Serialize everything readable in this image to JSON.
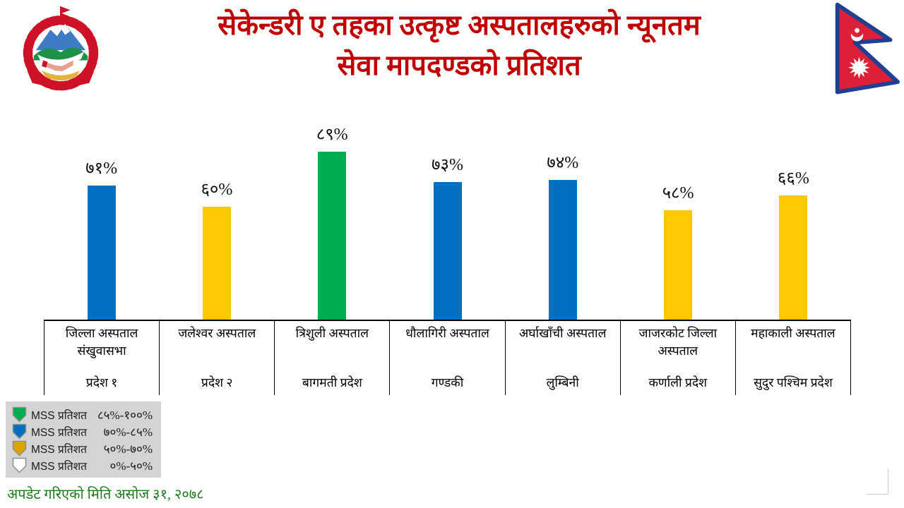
{
  "slide": {
    "title_line1": "सेकेन्डरी ए तहका उत्कृष्ट अस्पतालहरुको न्यूनतम",
    "title_line2": "सेवा मापदण्डको प्रतिशत",
    "footer": "अपडेट गरिएको मिति असोज ३१, २०७८"
  },
  "icons": {
    "logo": "nepal-government-emblem",
    "flag": "nepal-flag"
  },
  "colors": {
    "title_red": "#C00000",
    "bar_blue": "#0070C0",
    "bar_yellow": "#FFC800",
    "bar_green": "#00AC50",
    "legend_bg": "#D4D4D4",
    "footer_green": "#1F7A1F"
  },
  "chart_data": {
    "type": "bar",
    "title": "सेकेन्डरी ए तहका उत्कृष्ट अस्पतालहरुको न्यूनतम सेवा मापदण्डको प्रतिशत",
    "categories": [
      "जिल्ला अस्पताल संखुवासभा",
      "जलेश्वर अस्पताल",
      "त्रिशुली अस्पताल",
      "धौलागिरी अस्पताल",
      "अर्घाखाँची अस्पताल",
      "जाजरकोट जिल्ला अस्पताल",
      "महाकाली अस्पताल"
    ],
    "provinces": [
      "प्रदेश १",
      "प्रदेश २",
      "बागमती प्रदेश",
      "गण्डकी",
      "लुम्बिनी",
      "कर्णाली प्रदेश",
      "सुदुर पश्चिम प्रदेश"
    ],
    "values": [
      71,
      60,
      89,
      73,
      74,
      58,
      66
    ],
    "value_labels": [
      "७१%",
      "६०%",
      "८९%",
      "७३%",
      "७४%",
      "५८%",
      "६६%"
    ],
    "bar_colors": [
      "#0070C0",
      "#FFC800",
      "#00AC50",
      "#0070C0",
      "#0070C0",
      "#FFC800",
      "#FFC800"
    ],
    "xlabel": "",
    "ylabel": "",
    "ylim": [
      0,
      100
    ],
    "grid": false,
    "legend_position": "bottom-left"
  },
  "legend": {
    "items": [
      {
        "label": "MSS प्रतिशत",
        "range": "८५%-१००%",
        "color": "#00AC50"
      },
      {
        "label": "MSS प्रतिशत",
        "range": "७०%-८५%",
        "color": "#0070C0"
      },
      {
        "label": "MSS प्रतिशत",
        "range": "५०%-७०%",
        "color": "#DBA400"
      },
      {
        "label": "MSS प्रतिशत",
        "range": "०%-५०%",
        "color": "#FFFFFF"
      }
    ]
  }
}
